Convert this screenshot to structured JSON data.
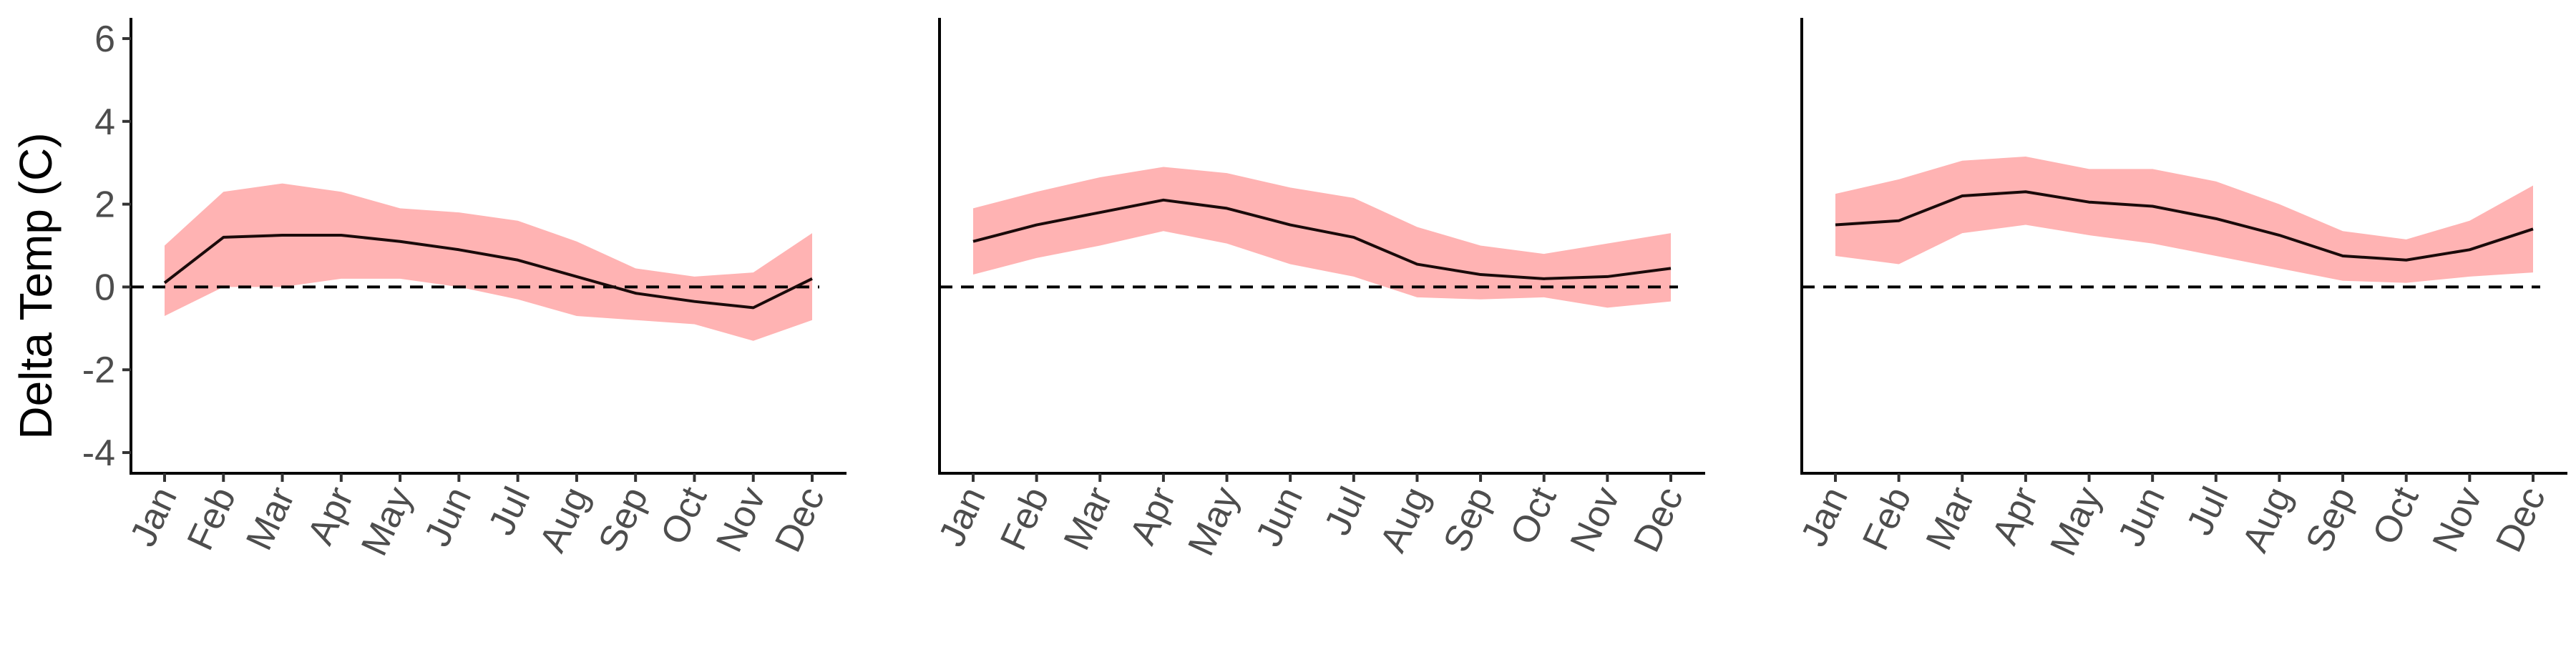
{
  "chart_data": [
    {
      "type": "area",
      "ylabel": "Delta Temp (C)",
      "xlabel": "",
      "ylim": [
        -4.5,
        6.5
      ],
      "yticks": [
        -4,
        -2,
        0,
        2,
        4,
        6
      ],
      "x": [
        "Jan",
        "Feb",
        "Mar",
        "Apr",
        "May",
        "Jun",
        "Jul",
        "Aug",
        "Sep",
        "Oct",
        "Nov",
        "Dec"
      ],
      "reference_line": 0,
      "series": [
        {
          "values": [
            0.1,
            1.2,
            1.25,
            1.25,
            1.1,
            0.9,
            0.65,
            0.25,
            -0.15,
            -0.35,
            -0.5,
            0.2
          ],
          "lower": [
            -0.7,
            0.0,
            0.0,
            0.2,
            0.2,
            0.0,
            -0.3,
            -0.7,
            -0.8,
            -0.9,
            -1.3,
            -0.8
          ],
          "upper": [
            1.0,
            2.3,
            2.5,
            2.3,
            1.9,
            1.8,
            1.6,
            1.1,
            0.45,
            0.25,
            0.35,
            1.3
          ]
        }
      ],
      "grid": false,
      "line_color": "#000000",
      "band_color": "#ffb3b3"
    },
    {
      "type": "area",
      "ylabel": "",
      "xlabel": "",
      "ylim": [
        -4.5,
        6.5
      ],
      "x": [
        "Jan",
        "Feb",
        "Mar",
        "Apr",
        "May",
        "Jun",
        "Jul",
        "Aug",
        "Sep",
        "Oct",
        "Nov",
        "Dec"
      ],
      "reference_line": 0,
      "series": [
        {
          "values": [
            1.1,
            1.5,
            1.8,
            2.1,
            1.9,
            1.5,
            1.2,
            0.55,
            0.3,
            0.2,
            0.25,
            0.45
          ],
          "lower": [
            0.3,
            0.7,
            1.0,
            1.35,
            1.05,
            0.55,
            0.25,
            -0.25,
            -0.3,
            -0.25,
            -0.5,
            -0.35
          ],
          "upper": [
            1.9,
            2.3,
            2.65,
            2.9,
            2.75,
            2.4,
            2.15,
            1.45,
            1.0,
            0.8,
            1.05,
            1.3
          ]
        }
      ],
      "grid": false,
      "line_color": "#000000",
      "band_color": "#ffb3b3"
    },
    {
      "type": "area",
      "ylabel": "",
      "xlabel": "",
      "ylim": [
        -4.5,
        6.5
      ],
      "x": [
        "Jan",
        "Feb",
        "Mar",
        "Apr",
        "May",
        "Jun",
        "Jul",
        "Aug",
        "Sep",
        "Oct",
        "Nov",
        "Dec"
      ],
      "reference_line": 0,
      "series": [
        {
          "values": [
            1.5,
            1.6,
            2.2,
            2.3,
            2.05,
            1.95,
            1.65,
            1.25,
            0.75,
            0.65,
            0.9,
            1.4
          ],
          "lower": [
            0.75,
            0.55,
            1.3,
            1.5,
            1.25,
            1.05,
            0.75,
            0.45,
            0.15,
            0.1,
            0.25,
            0.35
          ],
          "upper": [
            2.25,
            2.6,
            3.05,
            3.15,
            2.85,
            2.85,
            2.55,
            2.0,
            1.35,
            1.15,
            1.6,
            2.45
          ]
        }
      ],
      "grid": false,
      "line_color": "#000000",
      "band_color": "#ffb3b3"
    }
  ]
}
